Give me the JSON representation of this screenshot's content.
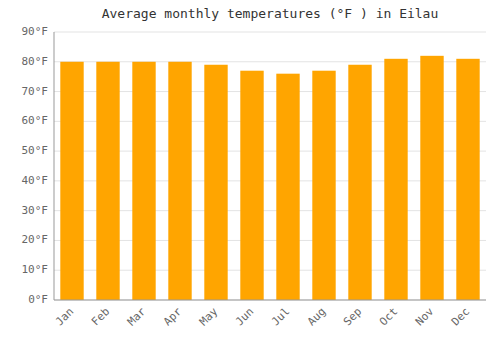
{
  "chart_data": {
    "type": "bar",
    "title": "Average monthly temperatures (°F ) in Eilau",
    "categories": [
      "Jan",
      "Feb",
      "Mar",
      "Apr",
      "May",
      "Jun",
      "Jul",
      "Aug",
      "Sep",
      "Oct",
      "Nov",
      "Dec"
    ],
    "values": [
      80,
      80,
      80,
      80,
      79,
      77,
      76,
      77,
      79,
      81,
      82,
      81
    ],
    "color": "#FFA500",
    "ylim": [
      0,
      90
    ],
    "yticks": [
      {
        "value": 0,
        "label": "0°F"
      },
      {
        "value": 10,
        "label": "10°F"
      },
      {
        "value": 20,
        "label": "20°F"
      },
      {
        "value": 30,
        "label": "30°F"
      },
      {
        "value": 40,
        "label": "40°F"
      },
      {
        "value": 50,
        "label": "50°F"
      },
      {
        "value": 60,
        "label": "60°F"
      },
      {
        "value": 70,
        "label": "70°F"
      },
      {
        "value": 80,
        "label": "80°F"
      },
      {
        "value": 90,
        "label": "90°F"
      }
    ],
    "grid": true
  }
}
